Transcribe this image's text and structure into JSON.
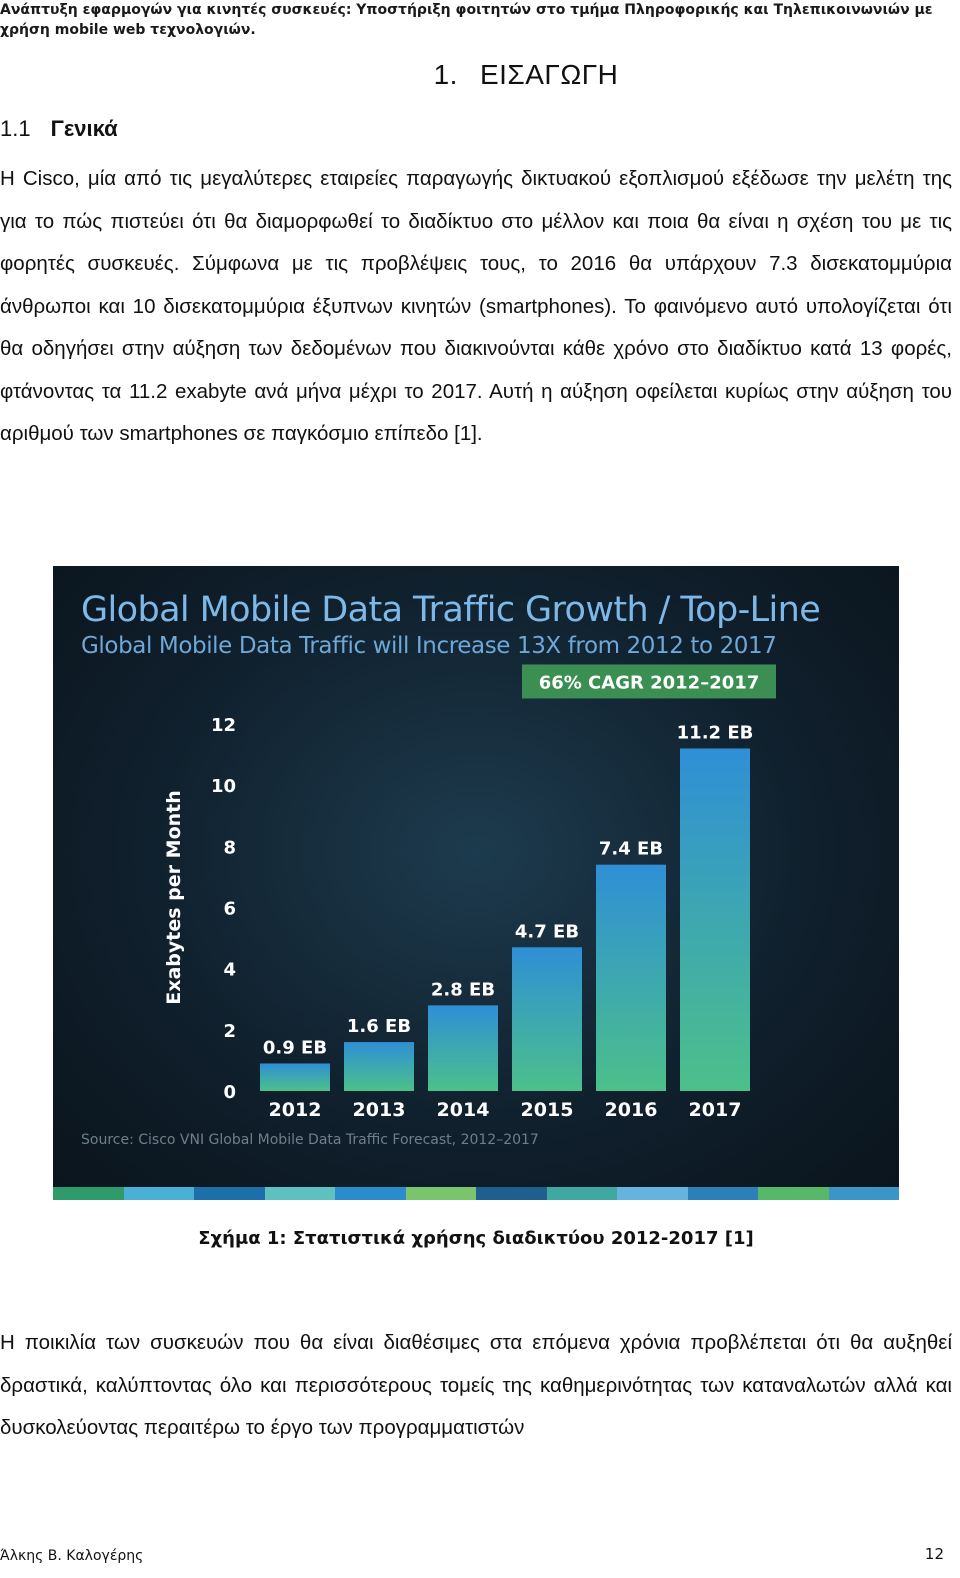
{
  "header": {
    "running_title": "Ανάπτυξη εφαρμογών για κινητές συσκευές: Υποστήριξη φοιτητών στο τμήμα Πληροφορικής και Τηλεπικοινωνιών με χρήση mobile web τεχνολογιών."
  },
  "chapter": {
    "number": "1.",
    "title": "ΕΙΣΑΓΩΓΗ"
  },
  "section": {
    "number": "1.1",
    "title": "Γενικά"
  },
  "paragraphs": [
    "Η Cisco, μία από τις μεγαλύτερες εταιρείες παραγωγής δικτυακού εξοπλισμού εξέδωσε την μελέτη της για το πώς πιστεύει ότι θα διαμορφωθεί το διαδίκτυο στο μέλλον και ποια θα είναι η σχέση του με τις φορητές συσκευές. Σύμφωνα με τις προβλέψεις τους, το 2016 θα υπάρχουν 7.3 δισεκατομμύρια άνθρωποι και 10 δισεκατομμύρια έξυπνων κινητών (smartphones). Το φαινόμενο αυτό υπολογίζεται ότι θα οδηγήσει στην αύξηση των δεδομένων που διακινούνται κάθε χρόνο στο διαδίκτυο κατά 13 φορές, φτάνοντας τα 11.2 exabyte ανά μήνα μέχρι το 2017. Αυτή η αύξηση οφείλεται κυρίως στην αύξηση του αριθμού των smartphones σε παγκόσμιο επίπεδο [1].",
    "Η ποικιλία των συσκευών που θα είναι διαθέσιμες στα επόμενα χρόνια προβλέπεται ότι θα αυξηθεί δραστικά, καλύπτοντας όλο και περισσότερους τομείς της καθημερινότητας των καταναλωτών αλλά και δυσκολεύοντας περαιτέρω το έργο των προγραμματιστών"
  ],
  "figure": {
    "caption": "Σχήμα 1: Στατιστικά χρήσης διαδικτύου 2012-2017 [1]",
    "source": "Source: Cisco VNI Global Mobile Data Traffic Forecast, 2012–2017",
    "strip_colors": [
      "#2f9a6a",
      "#4bb0d6",
      "#1c6fa8",
      "#5fc0c0",
      "#2a8ccd",
      "#79c46d",
      "#1f5f8f",
      "#3fa8a0",
      "#66b3e0",
      "#2d7fb8",
      "#58b86a",
      "#3b95c8"
    ]
  },
  "chart_data": {
    "type": "bar",
    "title": "Global Mobile Data Traffic Growth / Top-Line",
    "subtitle": "Global Mobile Data Traffic will Increase 13X from 2012 to 2017",
    "ylabel": "Exabytes per Month",
    "xlabel": "",
    "categories": [
      "2012",
      "2013",
      "2014",
      "2015",
      "2016",
      "2017"
    ],
    "values": [
      0.9,
      1.6,
      2.8,
      4.7,
      7.4,
      11.2
    ],
    "data_labels": [
      "0.9 EB",
      "1.6 EB",
      "2.8 EB",
      "4.7 EB",
      "7.4 EB",
      "11.2 EB"
    ],
    "ylim": [
      0,
      12
    ],
    "yticks": [
      "0",
      "2",
      "4",
      "6",
      "8",
      "10",
      "12"
    ],
    "annotation": "66% CAGR 2012–2017",
    "grid": false,
    "colors": {
      "bar_top": "#2f8fd6",
      "bar_bottom": "#4cc08a",
      "annotation_bg": "#3b8f52",
      "text": "#ffffff"
    }
  },
  "footer": {
    "author": "Άλκης Β. Καλογέρης",
    "page_number": "12"
  }
}
